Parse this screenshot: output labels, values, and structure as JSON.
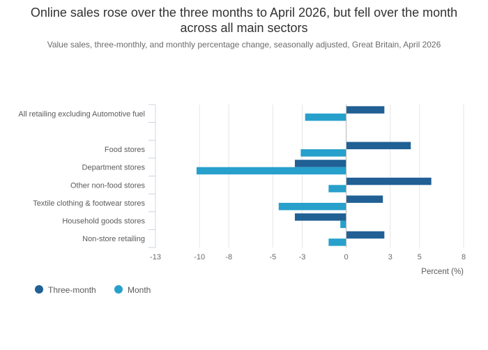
{
  "chart_data": {
    "type": "bar",
    "orientation": "horizontal",
    "title": "Online sales rose over the three months to April 2026, but fell over the month across all main sectors",
    "subtitle": "Value sales, three-monthly, and monthly percentage change, seasonally adjusted, Great Britain, April 2026",
    "categories": [
      "All retailing excluding Automotive fuel",
      "",
      "Food stores",
      "Department stores",
      "Other non-food stores",
      "Textile clothing & footwear stores",
      "Household goods stores",
      "Non-store retailing"
    ],
    "series": [
      {
        "name": "Three-month",
        "color": "#206095",
        "values": [
          2.6,
          null,
          4.4,
          -3.5,
          5.8,
          2.5,
          -3.5,
          2.6
        ]
      },
      {
        "name": "Month",
        "color": "#27a0cc",
        "values": [
          -2.8,
          null,
          -3.1,
          -10.2,
          -1.2,
          -4.6,
          -0.4,
          -1.2
        ]
      }
    ],
    "xlabel": "Percent (%)",
    "xlim": [
      -13,
      8
    ],
    "xticks": [
      -13,
      -10,
      -8,
      -5,
      -3,
      0,
      3,
      5,
      8
    ],
    "xtick_labels": [
      "-13",
      "-10",
      "-8",
      "-5",
      "-3",
      "0",
      "3",
      "5",
      "8"
    ],
    "grid": true,
    "legend": "bottom-left"
  }
}
